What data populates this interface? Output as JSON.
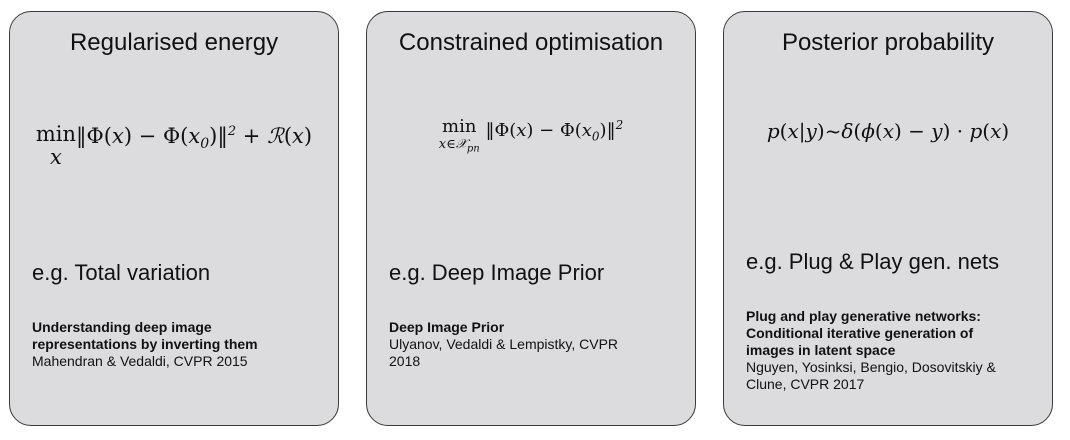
{
  "cards": [
    {
      "title": "Regularised energy",
      "formula": "min_x ‖Φ(x) − Φ(x₀)‖² + ℛ(x)",
      "example": "e.g. Total variation",
      "reference": {
        "paper_title": "Understanding deep image\nrepresentations by inverting them",
        "authors": "Mahendran & Vedaldi, CVPR 2015"
      }
    },
    {
      "title": "Constrained optimisation",
      "formula": "min_{x∈𝒳pn} ‖Φ(x) − Φ(x₀)‖²",
      "example": "e.g. Deep Image Prior",
      "reference": {
        "paper_title": "Deep Image Prior",
        "authors": "Ulyanov, Vedaldi & Lempistky, CVPR\n2018"
      }
    },
    {
      "title": "Posterior probability",
      "formula": "p(x|y)~δ(ϕ(x) − y) · p(x)",
      "example": "e.g. Plug & Play gen. nets",
      "reference": {
        "paper_title": "Plug and play generative networks:\nConditional iterative generation of\nimages in latent space",
        "authors": "Nguyen, Yosinksi, Bengio, Dosovitskiy &\nClune, CVPR 2017"
      }
    }
  ]
}
